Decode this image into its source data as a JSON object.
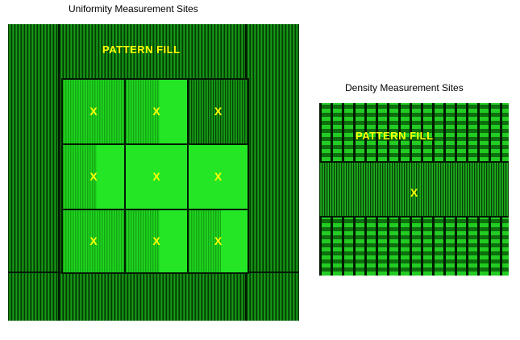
{
  "uniformity": {
    "title": "Uniformity Measurement Sites",
    "pattern_label": "PATTERN FILL",
    "sites": [
      "X",
      "X",
      "X",
      "X",
      "X",
      "X",
      "X",
      "X",
      "X"
    ]
  },
  "density": {
    "title": "Density Measurement Sites",
    "pattern_label": "PATTERN FILL",
    "site": "X"
  },
  "colors": {
    "fill_green": "#1ed41e",
    "pattern_green": "#0b7a0b",
    "marker_yellow": "#ffff00"
  }
}
